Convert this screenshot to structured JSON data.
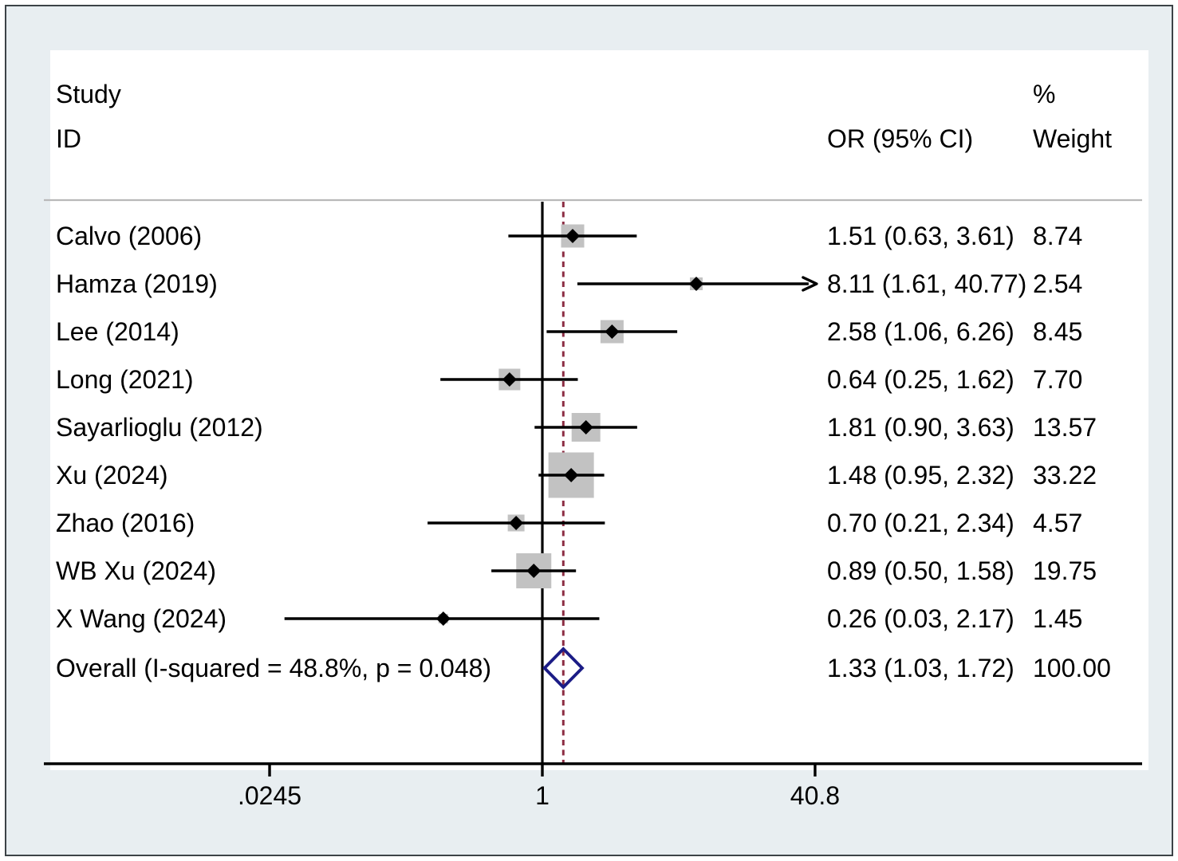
{
  "header": {
    "study_line1": "Study",
    "study_line2": "ID",
    "or_col_label": "OR (95% CI)",
    "weight_line1": "%",
    "weight_line2": "Weight"
  },
  "axis": {
    "ticks": [
      {
        "label": ".0245",
        "value": 0.0245
      },
      {
        "label": "1",
        "value": 1
      },
      {
        "label": "40.8",
        "value": 40.8
      }
    ]
  },
  "colors": {
    "background": "#e8eef1",
    "frame_border": "#3c4347",
    "panel": "#ffffff",
    "weight_square": "#c2c2c2",
    "ci_line": "#000000",
    "null_line": "#000000",
    "overall_dashed_line": "#8c2d43",
    "overall_diamond": "#1b1c86",
    "header_separator": "#b9b9b9",
    "text": "#000000"
  },
  "chart_data": {
    "type": "forest",
    "scale": "log10",
    "xlabel_ticks": [
      ".0245",
      "1",
      "40.8"
    ],
    "null_line_value": 1,
    "overall_line_value": 1.33,
    "columns": {
      "study": "Study ID",
      "or_ci": "OR (95% CI)",
      "weight": "% Weight"
    },
    "studies": [
      {
        "id": "Calvo (2006)",
        "or": 1.51,
        "ci_low": 0.63,
        "ci_high": 3.61,
        "weight": 8.74,
        "or_text": "1.51 (0.63, 3.61)",
        "weight_text": "8.74",
        "clip_high": false
      },
      {
        "id": "Hamza (2019)",
        "or": 8.11,
        "ci_low": 1.61,
        "ci_high": 40.77,
        "weight": 2.54,
        "or_text": "8.11 (1.61, 40.77)",
        "weight_text": "2.54",
        "clip_high": true
      },
      {
        "id": "Lee (2014)",
        "or": 2.58,
        "ci_low": 1.06,
        "ci_high": 6.26,
        "weight": 8.45,
        "or_text": "2.58 (1.06, 6.26)",
        "weight_text": "8.45",
        "clip_high": false
      },
      {
        "id": "Long (2021)",
        "or": 0.64,
        "ci_low": 0.25,
        "ci_high": 1.62,
        "weight": 7.7,
        "or_text": "0.64 (0.25, 1.62)",
        "weight_text": "7.70",
        "clip_high": false
      },
      {
        "id": "Sayarlioglu (2012)",
        "or": 1.81,
        "ci_low": 0.9,
        "ci_high": 3.63,
        "weight": 13.57,
        "or_text": "1.81 (0.90, 3.63)",
        "weight_text": "13.57",
        "clip_high": false
      },
      {
        "id": "Xu (2024)",
        "or": 1.48,
        "ci_low": 0.95,
        "ci_high": 2.32,
        "weight": 33.22,
        "or_text": "1.48 (0.95, 2.32)",
        "weight_text": "33.22",
        "clip_high": false
      },
      {
        "id": "Zhao (2016)",
        "or": 0.7,
        "ci_low": 0.21,
        "ci_high": 2.34,
        "weight": 4.57,
        "or_text": "0.70 (0.21, 2.34)",
        "weight_text": "4.57",
        "clip_high": false
      },
      {
        "id": "WB Xu (2024)",
        "or": 0.89,
        "ci_low": 0.5,
        "ci_high": 1.58,
        "weight": 19.75,
        "or_text": "0.89 (0.50, 1.58)",
        "weight_text": "19.75",
        "clip_high": false
      },
      {
        "id": "X Wang (2024)",
        "or": 0.26,
        "ci_low": 0.03,
        "ci_high": 2.17,
        "weight": 1.45,
        "or_text": "0.26 (0.03, 2.17)",
        "weight_text": "1.45",
        "clip_high": false
      }
    ],
    "overall": {
      "label": "Overall  (I-squared = 48.8%, p = 0.048)",
      "or": 1.33,
      "ci_low": 1.03,
      "ci_high": 1.72,
      "or_text": "1.33 (1.03, 1.72)",
      "weight_text": "100.00",
      "i_squared": "48.8%",
      "p_value": "0.048"
    }
  }
}
